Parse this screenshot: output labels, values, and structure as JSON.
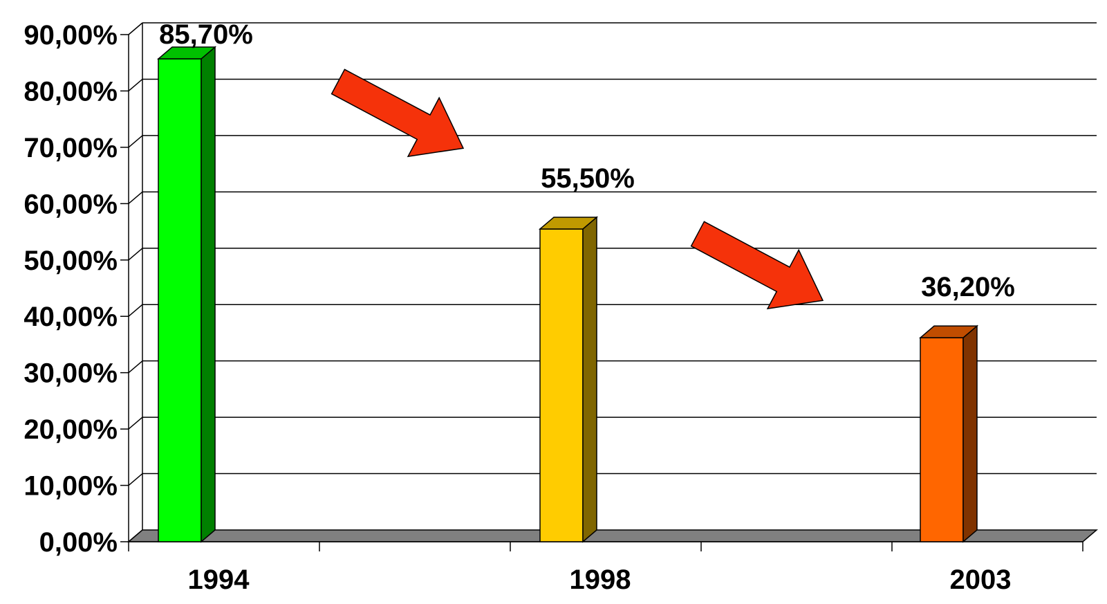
{
  "chart_data": {
    "type": "bar",
    "style": "3d",
    "categories": [
      "1994",
      "1998",
      "2003"
    ],
    "values": [
      85.7,
      55.5,
      36.2
    ],
    "data_labels": [
      "85,70%",
      "55,50%",
      "36,20%"
    ],
    "bar_colors": [
      "#00ff00",
      "#ffcc00",
      "#ff6600"
    ],
    "bar_side_colors": [
      "#008000",
      "#806600",
      "#803300"
    ],
    "bar_top_colors": [
      "#00c000",
      "#c09a00",
      "#c04d00"
    ],
    "ylim": [
      0,
      90
    ],
    "yticks": [
      0,
      10,
      20,
      30,
      40,
      50,
      60,
      70,
      80,
      90
    ],
    "ytick_labels": [
      "0,00%",
      "10,00%",
      "20,00%",
      "30,00%",
      "40,00%",
      "50,00%",
      "60,00%",
      "70,00%",
      "80,00%",
      "90,00%"
    ],
    "grid": true,
    "title": "",
    "xlabel": "",
    "ylabel": "",
    "floor_color": "#808080",
    "annotations": [
      {
        "type": "arrow",
        "direction": "down-right",
        "from_category": "1994",
        "to_category": "1998",
        "color": "#f5320a"
      },
      {
        "type": "arrow",
        "direction": "down-right",
        "from_category": "1998",
        "to_category": "2003",
        "color": "#f5320a"
      }
    ]
  }
}
